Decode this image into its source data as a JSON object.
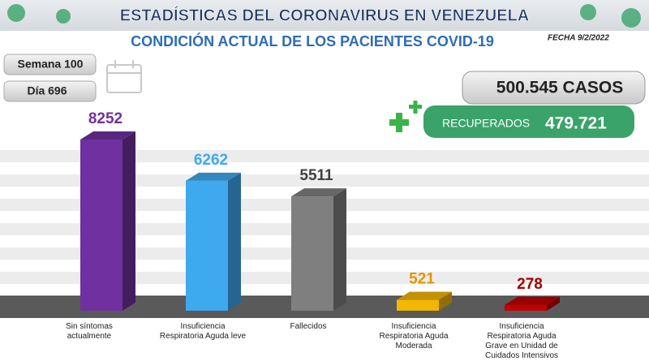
{
  "header": {
    "title": "ESTADÍSTICAS DEL CORONAVIRUS EN VENEZUELA",
    "subtitle": "CONDICIÓN ACTUAL DE LOS PACIENTES COVID-19",
    "date": "FECHA 9/2/2022"
  },
  "week": "Semana 100",
  "day": "Día 696",
  "cases": "500.545 CASOS",
  "recovered_label": "RECUPERADOS",
  "recovered": "479.721",
  "chart_data": {
    "type": "bar",
    "categories": [
      "Sin síntomas actualmente",
      "Insuficiencia Respiratoria Aguda leve",
      "Fallecidos",
      "Insuficiencia Respiratoria Aguda Moderada",
      "Insuficiencia Respiratoria Aguda Grave en Unidad de Cuidados Intensivos"
    ],
    "values": [
      8252,
      6262,
      5511,
      521,
      278
    ],
    "colors": [
      "#7030a0",
      "#3fa9ef",
      "#7f7f7f",
      "#f2b705",
      "#c00000"
    ],
    "label_colors": [
      "#7030a0",
      "#3fa9ef",
      "#404040",
      "#e69500",
      "#a50000"
    ]
  }
}
